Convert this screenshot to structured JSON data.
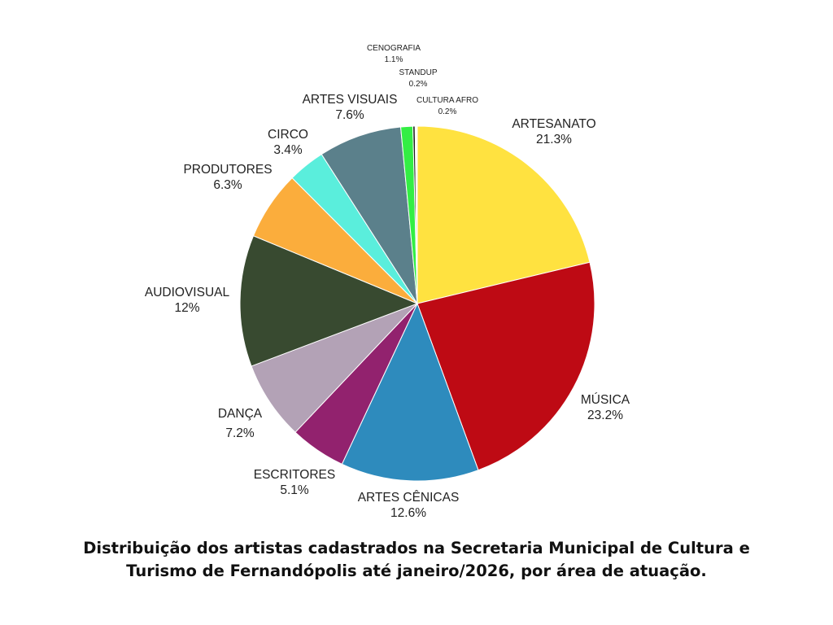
{
  "chart_data": {
    "type": "pie",
    "title": "Distribuição dos artistas cadastrados na Secretaria Municipal de Cultura e Turismo de Fernandópolis até janeiro/2026, por área de atuação.",
    "start_angle_deg": 0,
    "direction": "clockwise",
    "slices": [
      {
        "label": "ARTESANATO",
        "value": 21.3,
        "pct_text": "21.3%",
        "color": "#FFE240"
      },
      {
        "label": "MÚSICA",
        "value": 23.2,
        "pct_text": "23.2%",
        "color": "#BE0A14"
      },
      {
        "label": "ARTES CÊNICAS",
        "value": 12.6,
        "pct_text": "12.6%",
        "color": "#2E8BBD"
      },
      {
        "label": "ESCRITORES",
        "value": 5.1,
        "pct_text": "5.1%",
        "color": "#92226E"
      },
      {
        "label": "DANÇA",
        "value": 7.2,
        "pct_text": "7.2%",
        "color": "#B3A2B6"
      },
      {
        "label": "AUDIOVISUAL",
        "value": 12,
        "pct_text": "12%",
        "color": "#384A30"
      },
      {
        "label": "PRODUTORES",
        "value": 6.3,
        "pct_text": "6.3%",
        "color": "#FBAD3C"
      },
      {
        "label": "CIRCO",
        "value": 3.4,
        "pct_text": "3.4%",
        "color": "#5AEEDC"
      },
      {
        "label": "ARTES VISUAIS",
        "value": 7.6,
        "pct_text": "7.6%",
        "color": "#5B808B"
      },
      {
        "label": "CENOGRAFIA",
        "value": 1.1,
        "pct_text": "1.1%",
        "color": "#33EE44"
      },
      {
        "label": "STANDUP",
        "value": 0.2,
        "pct_text": "0.2%",
        "color": "#1A1A1A"
      },
      {
        "label": "CULTURA AFRO",
        "value": 0.2,
        "pct_text": "0.2%",
        "color": "#FFFFFF"
      }
    ]
  },
  "labels": {
    "artesanato": {
      "name": "ARTESANATO",
      "pct": "21.3%"
    },
    "musica": {
      "name": "MÚSICA",
      "pct": "23.2%"
    },
    "artes_cenicas": {
      "name": "ARTES CÊNICAS",
      "pct": "12.6%"
    },
    "escritores": {
      "name": "ESCRITORES",
      "pct": "5.1%"
    },
    "danca": {
      "name": "DANÇA",
      "pct": "7.2%"
    },
    "audiovisual": {
      "name": "AUDIOVISUAL",
      "pct": "12%"
    },
    "produtores": {
      "name": "PRODUTORES",
      "pct": "6.3%"
    },
    "circo": {
      "name": "CIRCO",
      "pct": "3.4%"
    },
    "artes_visuais": {
      "name": "ARTES VISUAIS",
      "pct": "7.6%"
    },
    "cenografia": {
      "name": "CENOGRAFIA",
      "pct": "1.1%"
    },
    "standup": {
      "name": "STANDUP",
      "pct": "0.2%"
    },
    "cultura_afro": {
      "name": "CULTURA AFRO",
      "pct": "0.2%"
    }
  },
  "caption": {
    "line1": "Distribuição dos artistas cadastrados na Secretaria Municipal de Cultura e",
    "line2": "Turismo de Fernandópolis até janeiro/2026, por área de atuação."
  }
}
